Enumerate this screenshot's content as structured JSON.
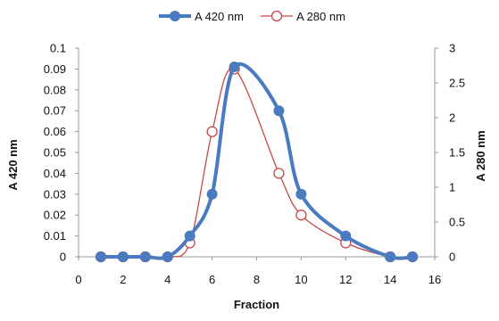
{
  "chart_data": {
    "type": "line",
    "title": "",
    "xlabel": "Fraction",
    "ylabel_left": "A 420 nm",
    "ylabel_right": "A 280 nm",
    "xlim": [
      0,
      16
    ],
    "x_ticks": [
      "0",
      "2",
      "4",
      "6",
      "8",
      "10",
      "12",
      "14",
      "16"
    ],
    "ylim_left": [
      0,
      0.1
    ],
    "y_ticks_left": [
      "0",
      "0.01",
      "0.02",
      "0.03",
      "0.04",
      "0.05",
      "0.06",
      "0.07",
      "0.08",
      "0.09",
      "0.1"
    ],
    "ylim_right": [
      0,
      3
    ],
    "y_ticks_right": [
      "0",
      "0.5",
      "1",
      "1.5",
      "2",
      "2.5",
      "3"
    ],
    "grid": false,
    "legend_position": "top",
    "series": [
      {
        "name": "A 420 nm",
        "axis": "left",
        "color": "#4a7bc0",
        "marker": "filled-circle",
        "x": [
          1,
          2,
          3,
          4,
          5,
          6,
          7,
          9,
          10,
          12,
          14,
          15
        ],
        "y": [
          0,
          0,
          0,
          0,
          0.01,
          0.03,
          0.091,
          0.07,
          0.03,
          0.01,
          0,
          0
        ]
      },
      {
        "name": "A 280 nm",
        "axis": "right",
        "color": "#c9484a",
        "marker": "open-circle",
        "x": [
          1,
          2,
          3,
          4,
          5,
          6,
          7,
          9,
          10,
          12,
          14,
          15
        ],
        "y": [
          0,
          0,
          0,
          0,
          0.2,
          1.8,
          2.7,
          1.2,
          0.6,
          0.2,
          0,
          0
        ]
      }
    ]
  }
}
